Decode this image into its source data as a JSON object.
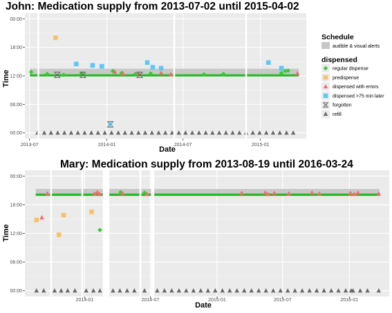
{
  "chart_data": [
    {
      "type": "scatter",
      "title": "John: Medication supply from 2013-07-02 until 2015-04-02",
      "xlabel": "Date",
      "ylabel": "Time",
      "x_range": [
        "2013-06-20",
        "2015-04-20"
      ],
      "y_range_hours": [
        -1.2,
        25.2
      ],
      "x_ticks": [
        {
          "date": "2013-07-01",
          "label": "2013-07"
        },
        {
          "date": "2014-01-01",
          "label": "2014-01"
        },
        {
          "date": "2014-07-01",
          "label": "2014-07"
        },
        {
          "date": "2015-01-01",
          "label": "2015-01"
        }
      ],
      "y_ticks": [
        {
          "hour": 0,
          "label": "00:00"
        },
        {
          "hour": 6,
          "label": "06:00"
        },
        {
          "hour": 12,
          "label": "12:00"
        },
        {
          "hour": 18,
          "label": "18:00"
        },
        {
          "hour": 24,
          "label": "00:00"
        }
      ],
      "gaps": [
        [
          "2013-07-20",
          "2013-07-24"
        ],
        [
          "2014-06-08",
          "2014-06-12"
        ],
        [
          "2014-11-26",
          "2014-11-30"
        ]
      ],
      "schedule_band": {
        "start": "2013-07-02",
        "end": "2015-04-02",
        "hour_low": 12.0,
        "hour_high": 13.5
      },
      "regular_line": {
        "start": "2013-07-02",
        "end": "2015-04-02",
        "hour": 12.1
      },
      "series": [
        {
          "name": "regular dispense",
          "points": [
            [
              "2013-07-05",
              12.8
            ],
            [
              "2013-08-12",
              12.4
            ],
            [
              "2013-09-20",
              12.2
            ],
            [
              "2013-11-02",
              12.5
            ],
            [
              "2014-01-15",
              13.0
            ],
            [
              "2014-02-05",
              12.6
            ],
            [
              "2014-03-10",
              12.4
            ],
            [
              "2014-04-15",
              12.5
            ],
            [
              "2014-08-20",
              12.3
            ],
            [
              "2014-10-05",
              12.4
            ],
            [
              "2015-02-20",
              12.6
            ],
            [
              "2015-03-01",
              13.0
            ],
            [
              "2015-03-08",
              13.1
            ]
          ]
        },
        {
          "name": "predispense",
          "points": [
            [
              "2013-09-01",
              20.0
            ]
          ]
        },
        {
          "name": "dispensed with errors",
          "points": [
            [
              "2014-01-20",
              12.8
            ],
            [
              "2014-02-08",
              12.5
            ],
            [
              "2014-03-18",
              12.4
            ],
            [
              "2014-05-10",
              12.6
            ],
            [
              "2014-06-02",
              12.3
            ],
            [
              "2015-03-30",
              12.5
            ]
          ]
        },
        {
          "name": "dispensed >75 min later",
          "points": [
            [
              "2013-10-20",
              14.5
            ],
            [
              "2013-11-28",
              14.2
            ],
            [
              "2013-12-20",
              14.0
            ],
            [
              "2014-04-07",
              14.8
            ],
            [
              "2014-04-20",
              13.8
            ],
            [
              "2014-05-10",
              13.6
            ],
            [
              "2015-01-20",
              14.8
            ],
            [
              "2015-02-20",
              13.6
            ]
          ]
        },
        {
          "name": "forgotten",
          "points": [
            [
              "2013-09-05",
              12.2
            ],
            [
              "2013-11-05",
              12.2
            ],
            [
              "2014-01-09",
              1.8
            ],
            [
              "2014-03-20",
              12.2
            ]
          ]
        },
        {
          "name": "refill",
          "points": [
            [
              "2013-07-20",
              0
            ],
            [
              "2013-08-05",
              0
            ],
            [
              "2013-08-21",
              0
            ],
            [
              "2013-09-06",
              0
            ],
            [
              "2013-09-22",
              0
            ],
            [
              "2013-10-08",
              0
            ],
            [
              "2013-10-24",
              0
            ],
            [
              "2013-11-09",
              0
            ],
            [
              "2013-11-25",
              0
            ],
            [
              "2013-12-11",
              0
            ],
            [
              "2013-12-27",
              0
            ],
            [
              "2014-01-12",
              0
            ],
            [
              "2014-01-28",
              0
            ],
            [
              "2014-02-13",
              0
            ],
            [
              "2014-03-01",
              0
            ],
            [
              "2014-03-17",
              0
            ],
            [
              "2014-04-02",
              0
            ],
            [
              "2014-04-18",
              0
            ],
            [
              "2014-05-04",
              0
            ],
            [
              "2014-05-20",
              0
            ],
            [
              "2014-06-05",
              0
            ],
            [
              "2014-06-21",
              0
            ],
            [
              "2014-07-07",
              0
            ],
            [
              "2014-07-23",
              0
            ],
            [
              "2014-08-08",
              0
            ],
            [
              "2014-08-24",
              0
            ],
            [
              "2014-09-09",
              0
            ],
            [
              "2014-09-25",
              0
            ],
            [
              "2014-10-11",
              0
            ],
            [
              "2014-10-27",
              0
            ],
            [
              "2014-11-12",
              0
            ],
            [
              "2014-11-28",
              0
            ],
            [
              "2014-12-14",
              0
            ],
            [
              "2014-12-30",
              0
            ],
            [
              "2015-01-15",
              0
            ],
            [
              "2015-01-31",
              0
            ],
            [
              "2015-02-16",
              0
            ],
            [
              "2015-03-04",
              0
            ],
            [
              "2015-03-20",
              0
            ]
          ]
        }
      ]
    },
    {
      "type": "scatter",
      "title": "Mary: Medication supply from 2013-08-19 until 2016-03-24",
      "xlabel": "Date",
      "ylabel": "Time",
      "x_range": [
        "2013-07-20",
        "2016-04-20"
      ],
      "y_range_hours": [
        -1.2,
        25.2
      ],
      "x_ticks": [
        {
          "date": "2014-01-01",
          "label": "2014-01"
        },
        {
          "date": "2014-07-01",
          "label": "2014-07"
        },
        {
          "date": "2015-01-01",
          "label": "2015-01"
        },
        {
          "date": "2015-07-01",
          "label": "2015-07"
        },
        {
          "date": "2016-01-01",
          "label": "2016-01"
        }
      ],
      "y_ticks": [
        {
          "hour": 0,
          "label": "00:00"
        },
        {
          "hour": 6,
          "label": "06:00"
        },
        {
          "hour": 12,
          "label": "12:00"
        },
        {
          "hour": 18,
          "label": "18:00"
        },
        {
          "hour": 24,
          "label": "00:00"
        }
      ],
      "gaps": [
        [
          "2013-09-28",
          "2013-10-02"
        ],
        [
          "2013-12-23",
          "2013-12-27"
        ],
        [
          "2014-02-20",
          "2014-03-10"
        ],
        [
          "2014-06-01",
          "2014-06-06"
        ],
        [
          "2014-07-03",
          "2014-07-12"
        ]
      ],
      "schedule_band": {
        "start": "2013-08-19",
        "end": "2016-03-24",
        "hour_low": 19.8,
        "hour_high": 21.3
      },
      "regular_line": {
        "start": "2013-08-19",
        "end": "2016-03-24",
        "hour": 20.1
      },
      "series": [
        {
          "name": "regular dispense",
          "points": [
            [
              "2014-02-12",
              12.7
            ],
            [
              "2014-04-10",
              20.6
            ],
            [
              "2014-06-15",
              20.5
            ]
          ]
        },
        {
          "name": "predispense",
          "points": [
            [
              "2013-08-21",
              14.8
            ],
            [
              "2013-10-22",
              11.7
            ],
            [
              "2013-11-04",
              15.8
            ],
            [
              "2014-01-20",
              16.5
            ]
          ]
        },
        {
          "name": "dispensed with errors",
          "points": [
            [
              "2013-09-05",
              15.3
            ],
            [
              "2013-09-20",
              20.3
            ],
            [
              "2014-01-28",
              20.3
            ],
            [
              "2014-02-05",
              20.6
            ],
            [
              "2014-02-11",
              20.2
            ],
            [
              "2014-04-15",
              20.4
            ],
            [
              "2014-06-22",
              20.2
            ],
            [
              "2015-03-10",
              20.4
            ],
            [
              "2015-05-14",
              20.5
            ],
            [
              "2015-05-22",
              20.2
            ],
            [
              "2015-06-08",
              20.4
            ],
            [
              "2015-07-18",
              20.3
            ],
            [
              "2015-09-20",
              20.5
            ],
            [
              "2015-10-10",
              20.3
            ],
            [
              "2016-01-04",
              20.4
            ],
            [
              "2016-01-15",
              20.2
            ],
            [
              "2016-01-25",
              20.5
            ],
            [
              "2016-03-22",
              20.3
            ]
          ]
        },
        {
          "name": "forgotten",
          "points": []
        },
        {
          "name": "refill",
          "points": [
            [
              "2013-08-21",
              0
            ],
            [
              "2013-09-10",
              0
            ],
            [
              "2013-10-10",
              0
            ],
            [
              "2013-10-28",
              0
            ],
            [
              "2013-11-15",
              0
            ],
            [
              "2013-12-05",
              0
            ],
            [
              "2014-01-05",
              0
            ],
            [
              "2014-01-25",
              0
            ],
            [
              "2014-02-12",
              0
            ],
            [
              "2014-03-20",
              0
            ],
            [
              "2014-04-08",
              0
            ],
            [
              "2014-04-28",
              0
            ],
            [
              "2014-05-18",
              0
            ],
            [
              "2014-06-15",
              0
            ],
            [
              "2014-07-20",
              0
            ],
            [
              "2014-08-09",
              0
            ],
            [
              "2014-08-29",
              0
            ],
            [
              "2014-09-18",
              0
            ],
            [
              "2014-10-08",
              0
            ],
            [
              "2014-10-28",
              0
            ],
            [
              "2014-11-17",
              0
            ],
            [
              "2014-12-07",
              0
            ],
            [
              "2014-12-27",
              0
            ],
            [
              "2015-01-16",
              0
            ],
            [
              "2015-02-05",
              0
            ],
            [
              "2015-02-25",
              0
            ],
            [
              "2015-03-17",
              0
            ],
            [
              "2015-04-06",
              0
            ],
            [
              "2015-04-26",
              0
            ],
            [
              "2015-05-16",
              0
            ],
            [
              "2015-06-05",
              0
            ],
            [
              "2015-06-25",
              0
            ],
            [
              "2015-07-15",
              0
            ],
            [
              "2015-08-04",
              0
            ],
            [
              "2015-08-24",
              0
            ],
            [
              "2015-09-13",
              0
            ],
            [
              "2015-10-03",
              0
            ],
            [
              "2015-10-23",
              0
            ],
            [
              "2015-11-12",
              0
            ],
            [
              "2015-12-02",
              0
            ],
            [
              "2015-12-22",
              0
            ],
            [
              "2016-01-06",
              0
            ],
            [
              "2016-01-11",
              0
            ],
            [
              "2016-01-31",
              0
            ],
            [
              "2016-02-20",
              0
            ],
            [
              "2016-03-22",
              0
            ]
          ]
        }
      ]
    }
  ],
  "legend": {
    "schedule_title": "Schedule",
    "schedule_item": "audible & visual alerts",
    "dispensed_title": "dispensed",
    "items": [
      {
        "label": "regular dispense",
        "shape": "diamond",
        "color": "#33cc33"
      },
      {
        "label": "predispense",
        "shape": "square",
        "color": "#f7c26b"
      },
      {
        "label": "dispensed with errors",
        "shape": "triangle",
        "color": "#f46a6a"
      },
      {
        "label": "dispensed >75 min later",
        "shape": "square",
        "color": "#5bc8f5"
      },
      {
        "label": "forgotten",
        "shape": "hourglass",
        "color": "#666666"
      },
      {
        "label": "refill",
        "shape": "triangle",
        "color": "#666666"
      }
    ]
  },
  "colors": {
    "panel_bg": "#ebebeb",
    "grid_major": "#ffffff",
    "schedule_band": "#c8c8c8",
    "regular_line": "#22bb22",
    "refill": "#666666"
  }
}
